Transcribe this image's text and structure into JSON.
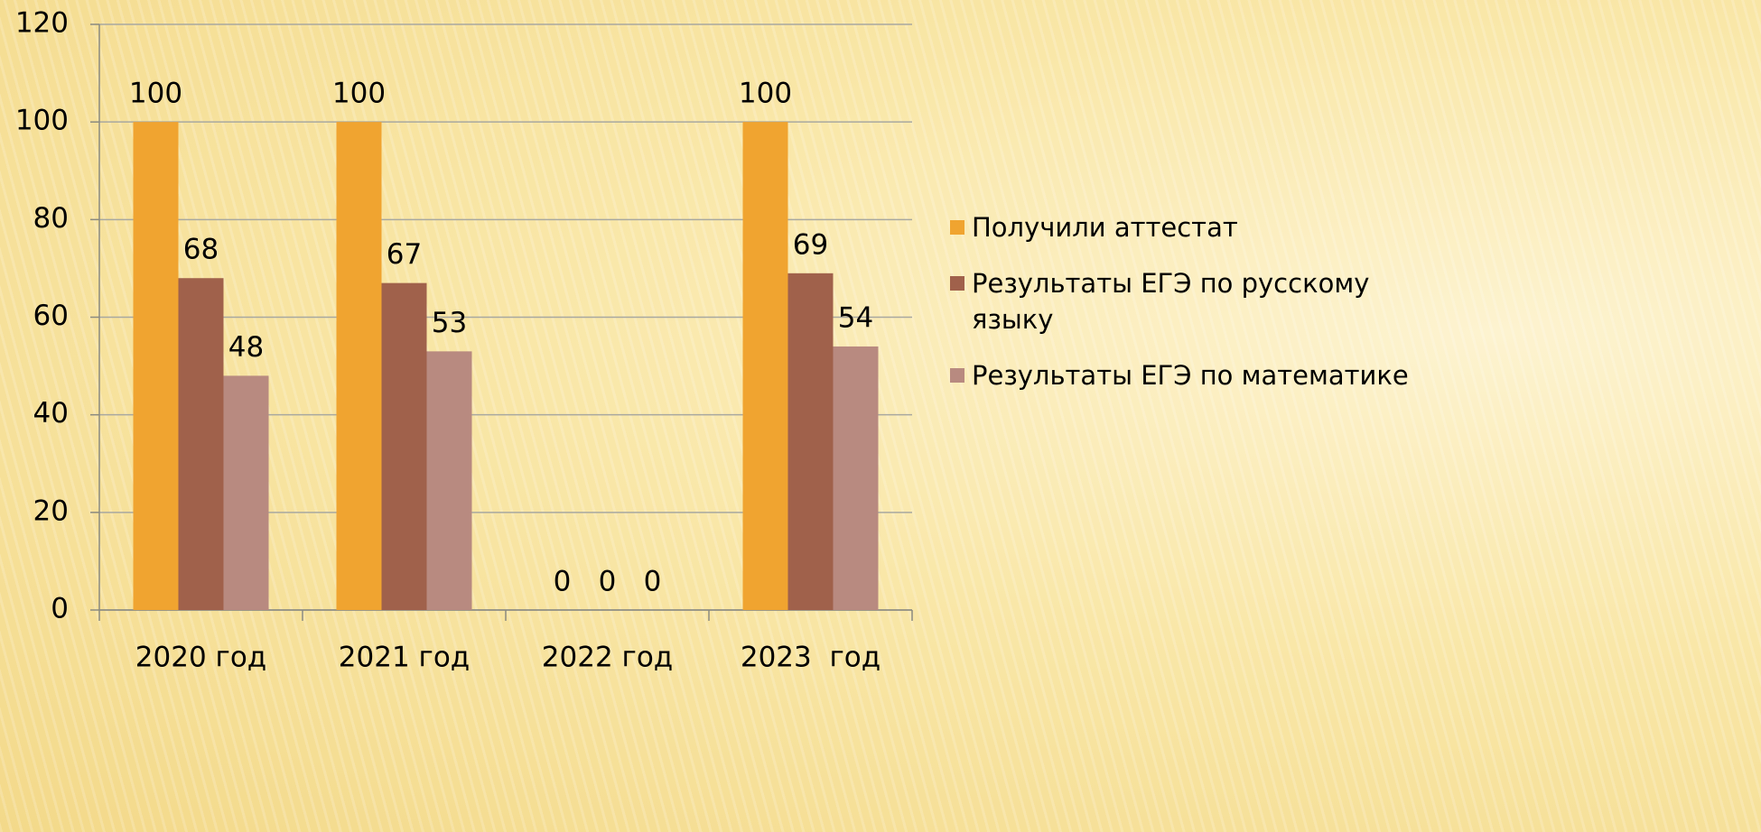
{
  "chart_data": {
    "type": "bar",
    "categories": [
      "2020 год",
      "2021 год",
      "2022 год",
      "2023  год"
    ],
    "series": [
      {
        "name": "Получили аттестат",
        "color": "#f0a430",
        "values": [
          100,
          100,
          0,
          100
        ]
      },
      {
        "name": "Результаты ЕГЭ по русскому языку",
        "color": "#a0614b",
        "values": [
          68,
          67,
          0,
          69
        ]
      },
      {
        "name": "Результаты ЕГЭ по математике",
        "color": "#b88a80",
        "values": [
          48,
          53,
          0,
          54
        ]
      }
    ],
    "ylim": [
      0,
      120
    ],
    "yticks": [
      0,
      20,
      40,
      60,
      80,
      100,
      120
    ],
    "grid": true,
    "legend": "right"
  }
}
